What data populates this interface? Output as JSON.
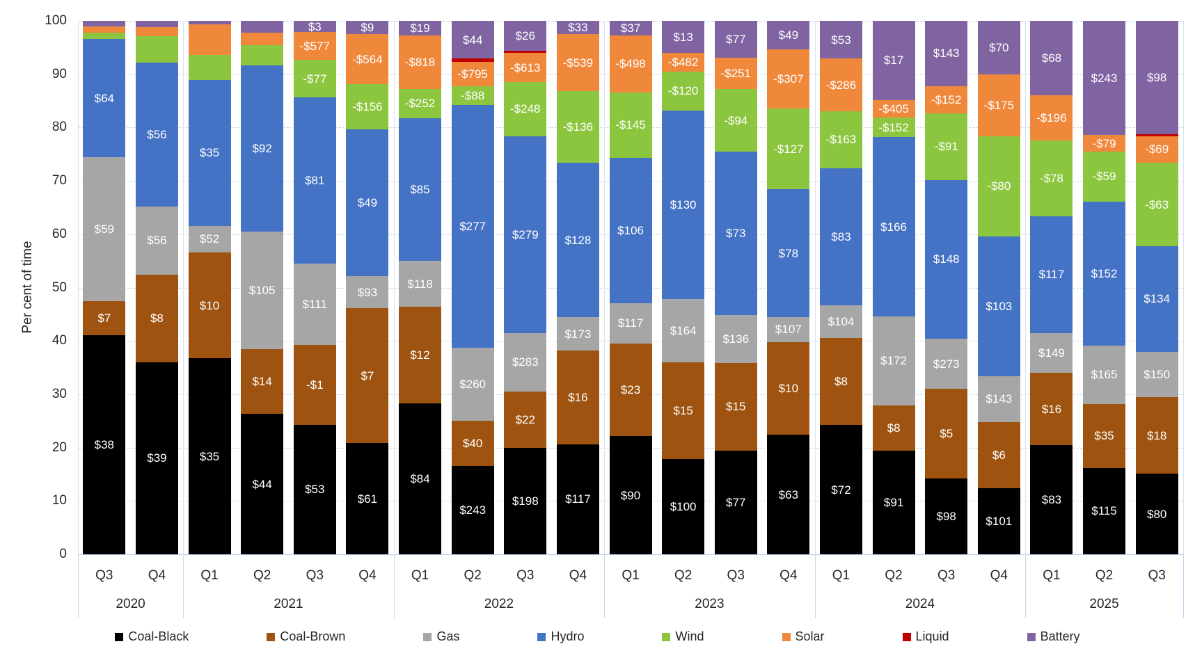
{
  "chart_data": {
    "type": "bar",
    "stacked": true,
    "title": "",
    "ylabel": "Per cent of time",
    "ylim": [
      0,
      100
    ],
    "yticks": [
      0,
      10,
      20,
      30,
      40,
      50,
      60,
      70,
      80,
      90,
      100
    ],
    "grid": "horizontal-dashed",
    "legend_position": "bottom",
    "series_order": [
      "Coal-Black",
      "Coal-Brown",
      "Gas",
      "Hydro",
      "Wind",
      "Solar",
      "Liquid",
      "Battery"
    ],
    "legend": [
      {
        "label": "Coal-Black",
        "color": "#000000"
      },
      {
        "label": "Coal-Brown",
        "color": "#9e5410"
      },
      {
        "label": "Gas",
        "color": "#a6a6a6"
      },
      {
        "label": "Hydro",
        "color": "#4472c4"
      },
      {
        "label": "Wind",
        "color": "#8cc63f"
      },
      {
        "label": "Solar",
        "color": "#f0883c"
      },
      {
        "label": "Liquid",
        "color": "#c00000"
      },
      {
        "label": "Battery",
        "color": "#8064a2"
      }
    ],
    "groups": [
      {
        "year": "2020",
        "quarters": [
          "Q3",
          "Q4"
        ]
      },
      {
        "year": "2021",
        "quarters": [
          "Q1",
          "Q2",
          "Q3",
          "Q4"
        ]
      },
      {
        "year": "2022",
        "quarters": [
          "Q1",
          "Q2",
          "Q3",
          "Q4"
        ]
      },
      {
        "year": "2023",
        "quarters": [
          "Q1",
          "Q2",
          "Q3",
          "Q4"
        ]
      },
      {
        "year": "2024",
        "quarters": [
          "Q1",
          "Q2",
          "Q3",
          "Q4"
        ]
      },
      {
        "year": "2025",
        "quarters": [
          "Q1",
          "Q2",
          "Q3"
        ]
      }
    ],
    "bars": [
      {
        "quarter": "Q3",
        "year": "2020",
        "segments": [
          [
            "Coal-Black",
            41.1,
            "$38"
          ],
          [
            "Coal-Brown",
            6.4,
            "$7"
          ],
          [
            "Gas",
            26.9,
            "$59"
          ],
          [
            "Hydro",
            22.2,
            "$64"
          ],
          [
            "Wind",
            1.2,
            ""
          ],
          [
            "Solar",
            1.1,
            ""
          ],
          [
            "Battery",
            1.1,
            ""
          ]
        ]
      },
      {
        "quarter": "Q4",
        "year": "2020",
        "segments": [
          [
            "Coal-Black",
            36.0,
            "$39"
          ],
          [
            "Coal-Brown",
            16.4,
            "$8"
          ],
          [
            "Gas",
            12.8,
            "$56"
          ],
          [
            "Hydro",
            27.0,
            "$56"
          ],
          [
            "Wind",
            4.9,
            ""
          ],
          [
            "Solar",
            1.7,
            ""
          ],
          [
            "Battery",
            1.2,
            ""
          ]
        ]
      },
      {
        "quarter": "Q1",
        "year": "2021",
        "segments": [
          [
            "Coal-Black",
            36.7,
            "$35"
          ],
          [
            "Coal-Brown",
            19.9,
            "$10"
          ],
          [
            "Gas",
            5.0,
            "$52"
          ],
          [
            "Hydro",
            27.3,
            "$35"
          ],
          [
            "Wind",
            4.7,
            ""
          ],
          [
            "Solar",
            5.7,
            ""
          ],
          [
            "Battery",
            0.7,
            ""
          ]
        ]
      },
      {
        "quarter": "Q2",
        "year": "2021",
        "segments": [
          [
            "Coal-Black",
            26.3,
            "$44"
          ],
          [
            "Coal-Brown",
            12.2,
            "$14"
          ],
          [
            "Gas",
            22.0,
            "$105"
          ],
          [
            "Hydro",
            31.2,
            "$92"
          ],
          [
            "Wind",
            3.8,
            ""
          ],
          [
            "Solar",
            2.3,
            ""
          ],
          [
            "Battery",
            2.2,
            ""
          ]
        ]
      },
      {
        "quarter": "Q3",
        "year": "2021",
        "segments": [
          [
            "Coal-Black",
            24.3,
            "$53"
          ],
          [
            "Coal-Brown",
            15.0,
            "-$1"
          ],
          [
            "Gas",
            15.2,
            "$111"
          ],
          [
            "Hydro",
            31.1,
            "$81"
          ],
          [
            "Wind",
            7.1,
            "-$77"
          ],
          [
            "Solar",
            5.2,
            "-$577"
          ],
          [
            "Battery",
            2.1,
            "$3"
          ]
        ]
      },
      {
        "quarter": "Q4",
        "year": "2021",
        "segments": [
          [
            "Coal-Black",
            20.8,
            "$61"
          ],
          [
            "Coal-Brown",
            25.4,
            "$7"
          ],
          [
            "Gas",
            5.9,
            "$93"
          ],
          [
            "Hydro",
            27.6,
            "$49"
          ],
          [
            "Wind",
            8.4,
            "-$156"
          ],
          [
            "Solar",
            9.4,
            "-$564"
          ],
          [
            "Battery",
            2.5,
            "$9"
          ]
        ]
      },
      {
        "quarter": "Q1",
        "year": "2022",
        "segments": [
          [
            "Coal-Black",
            28.3,
            "$84"
          ],
          [
            "Coal-Brown",
            18.1,
            "$12"
          ],
          [
            "Gas",
            8.6,
            "$118"
          ],
          [
            "Hydro",
            26.8,
            "$85"
          ],
          [
            "Wind",
            5.4,
            "-$252"
          ],
          [
            "Solar",
            10.1,
            "-$818"
          ],
          [
            "Battery",
            2.7,
            "$19"
          ]
        ]
      },
      {
        "quarter": "Q2",
        "year": "2022",
        "segments": [
          [
            "Coal-Black",
            16.6,
            "$243"
          ],
          [
            "Coal-Brown",
            8.4,
            "$40"
          ],
          [
            "Gas",
            13.7,
            "$260"
          ],
          [
            "Hydro",
            45.5,
            "$277"
          ],
          [
            "Wind",
            3.6,
            "-$88"
          ],
          [
            "Solar",
            4.5,
            "-$795"
          ],
          [
            "Liquid",
            0.6,
            ""
          ],
          [
            "Battery",
            7.1,
            "$44"
          ]
        ]
      },
      {
        "quarter": "Q3",
        "year": "2022",
        "segments": [
          [
            "Coal-Black",
            19.9,
            "$198"
          ],
          [
            "Coal-Brown",
            10.6,
            "$22"
          ],
          [
            "Gas",
            11.0,
            "$283"
          ],
          [
            "Hydro",
            36.9,
            "$279"
          ],
          [
            "Wind",
            10.1,
            "-$248"
          ],
          [
            "Solar",
            5.5,
            "-$613"
          ],
          [
            "Liquid",
            0.4,
            ""
          ],
          [
            "Battery",
            5.6,
            "$26"
          ]
        ]
      },
      {
        "quarter": "Q4",
        "year": "2022",
        "segments": [
          [
            "Coal-Black",
            20.6,
            "$117"
          ],
          [
            "Coal-Brown",
            17.6,
            "$16"
          ],
          [
            "Gas",
            6.2,
            "$173"
          ],
          [
            "Hydro",
            29.0,
            "$128"
          ],
          [
            "Wind",
            13.4,
            "-$136"
          ],
          [
            "Solar",
            10.7,
            "-$539"
          ],
          [
            "Battery",
            2.5,
            "$33"
          ]
        ]
      },
      {
        "quarter": "Q1",
        "year": "2023",
        "segments": [
          [
            "Coal-Black",
            22.1,
            "$90"
          ],
          [
            "Coal-Brown",
            17.4,
            "$23"
          ],
          [
            "Gas",
            7.6,
            "$117"
          ],
          [
            "Hydro",
            27.2,
            "$106"
          ],
          [
            "Wind",
            12.3,
            "-$145"
          ],
          [
            "Solar",
            10.7,
            "-$498"
          ],
          [
            "Battery",
            2.7,
            "$37"
          ]
        ]
      },
      {
        "quarter": "Q2",
        "year": "2023",
        "segments": [
          [
            "Coal-Black",
            17.9,
            "$100"
          ],
          [
            "Coal-Brown",
            18.1,
            "$15"
          ],
          [
            "Gas",
            11.8,
            "$164"
          ],
          [
            "Hydro",
            35.4,
            "$130"
          ],
          [
            "Wind",
            7.3,
            "-$120"
          ],
          [
            "Solar",
            3.5,
            "-$482"
          ],
          [
            "Battery",
            6.0,
            "$13"
          ]
        ]
      },
      {
        "quarter": "Q3",
        "year": "2023",
        "segments": [
          [
            "Coal-Black",
            19.4,
            "$77"
          ],
          [
            "Coal-Brown",
            16.5,
            "$15"
          ],
          [
            "Gas",
            9.0,
            "$136"
          ],
          [
            "Hydro",
            30.6,
            "$73"
          ],
          [
            "Wind",
            11.7,
            "-$94"
          ],
          [
            "Solar",
            5.9,
            "-$251"
          ],
          [
            "Battery",
            6.9,
            "$77"
          ]
        ]
      },
      {
        "quarter": "Q4",
        "year": "2023",
        "segments": [
          [
            "Coal-Black",
            22.4,
            "$63"
          ],
          [
            "Coal-Brown",
            17.4,
            "$10"
          ],
          [
            "Gas",
            4.7,
            "$107"
          ],
          [
            "Hydro",
            23.9,
            "$78"
          ],
          [
            "Wind",
            15.2,
            "-$127"
          ],
          [
            "Solar",
            11.1,
            "-$307"
          ],
          [
            "Battery",
            5.3,
            "$49"
          ]
        ]
      },
      {
        "quarter": "Q1",
        "year": "2024",
        "segments": [
          [
            "Coal-Black",
            24.2,
            "$72"
          ],
          [
            "Coal-Brown",
            16.3,
            "$8"
          ],
          [
            "Gas",
            6.2,
            "$104"
          ],
          [
            "Hydro",
            25.7,
            "$83"
          ],
          [
            "Wind",
            10.7,
            "-$163"
          ],
          [
            "Solar",
            9.8,
            "-$286"
          ],
          [
            "Battery",
            7.1,
            "$53"
          ]
        ]
      },
      {
        "quarter": "Q2",
        "year": "2024",
        "segments": [
          [
            "Coal-Black",
            19.4,
            "$91"
          ],
          [
            "Coal-Brown",
            8.5,
            "$8"
          ],
          [
            "Gas",
            16.7,
            "$172"
          ],
          [
            "Hydro",
            33.6,
            "$166"
          ],
          [
            "Wind",
            3.7,
            "-$152"
          ],
          [
            "Solar",
            3.3,
            "-$405"
          ],
          [
            "Battery",
            14.8,
            "$17"
          ]
        ]
      },
      {
        "quarter": "Q3",
        "year": "2024",
        "segments": [
          [
            "Coal-Black",
            14.2,
            "$98"
          ],
          [
            "Coal-Brown",
            16.8,
            "$5"
          ],
          [
            "Gas",
            9.4,
            "$273"
          ],
          [
            "Hydro",
            29.8,
            "$148"
          ],
          [
            "Wind",
            12.4,
            "-$91"
          ],
          [
            "Solar",
            5.2,
            "-$152"
          ],
          [
            "Battery",
            12.2,
            "$143"
          ]
        ]
      },
      {
        "quarter": "Q4",
        "year": "2024",
        "segments": [
          [
            "Coal-Black",
            12.4,
            "$101"
          ],
          [
            "Coal-Brown",
            12.4,
            "$6"
          ],
          [
            "Gas",
            8.6,
            "$143"
          ],
          [
            "Hydro",
            26.2,
            "$103"
          ],
          [
            "Wind",
            18.8,
            "-$80"
          ],
          [
            "Solar",
            11.6,
            "-$175"
          ],
          [
            "Battery",
            10.0,
            "$70"
          ]
        ]
      },
      {
        "quarter": "Q1",
        "year": "2025",
        "segments": [
          [
            "Coal-Black",
            20.4,
            "$83"
          ],
          [
            "Coal-Brown",
            13.6,
            "$16"
          ],
          [
            "Gas",
            7.5,
            "$149"
          ],
          [
            "Hydro",
            21.9,
            "$117"
          ],
          [
            "Wind",
            14.2,
            "-$78"
          ],
          [
            "Solar",
            8.5,
            "-$196"
          ],
          [
            "Battery",
            13.9,
            "$68"
          ]
        ]
      },
      {
        "quarter": "Q2",
        "year": "2025",
        "segments": [
          [
            "Coal-Black",
            16.2,
            "$115"
          ],
          [
            "Coal-Brown",
            12.0,
            "$35"
          ],
          [
            "Gas",
            10.9,
            "$165"
          ],
          [
            "Hydro",
            27.0,
            "$152"
          ],
          [
            "Wind",
            9.4,
            "-$59"
          ],
          [
            "Solar",
            3.1,
            "-$79"
          ],
          [
            "Battery",
            21.4,
            "$243"
          ]
        ]
      },
      {
        "quarter": "Q3",
        "year": "2025",
        "segments": [
          [
            "Coal-Black",
            15.1,
            "$80"
          ],
          [
            "Coal-Brown",
            14.3,
            "$18"
          ],
          [
            "Gas",
            8.6,
            "$150"
          ],
          [
            "Hydro",
            19.7,
            "$134"
          ],
          [
            "Wind",
            15.7,
            "-$63"
          ],
          [
            "Solar",
            5.0,
            "-$69"
          ],
          [
            "Liquid",
            0.4,
            ""
          ],
          [
            "Battery",
            21.2,
            "$98"
          ]
        ]
      }
    ]
  }
}
